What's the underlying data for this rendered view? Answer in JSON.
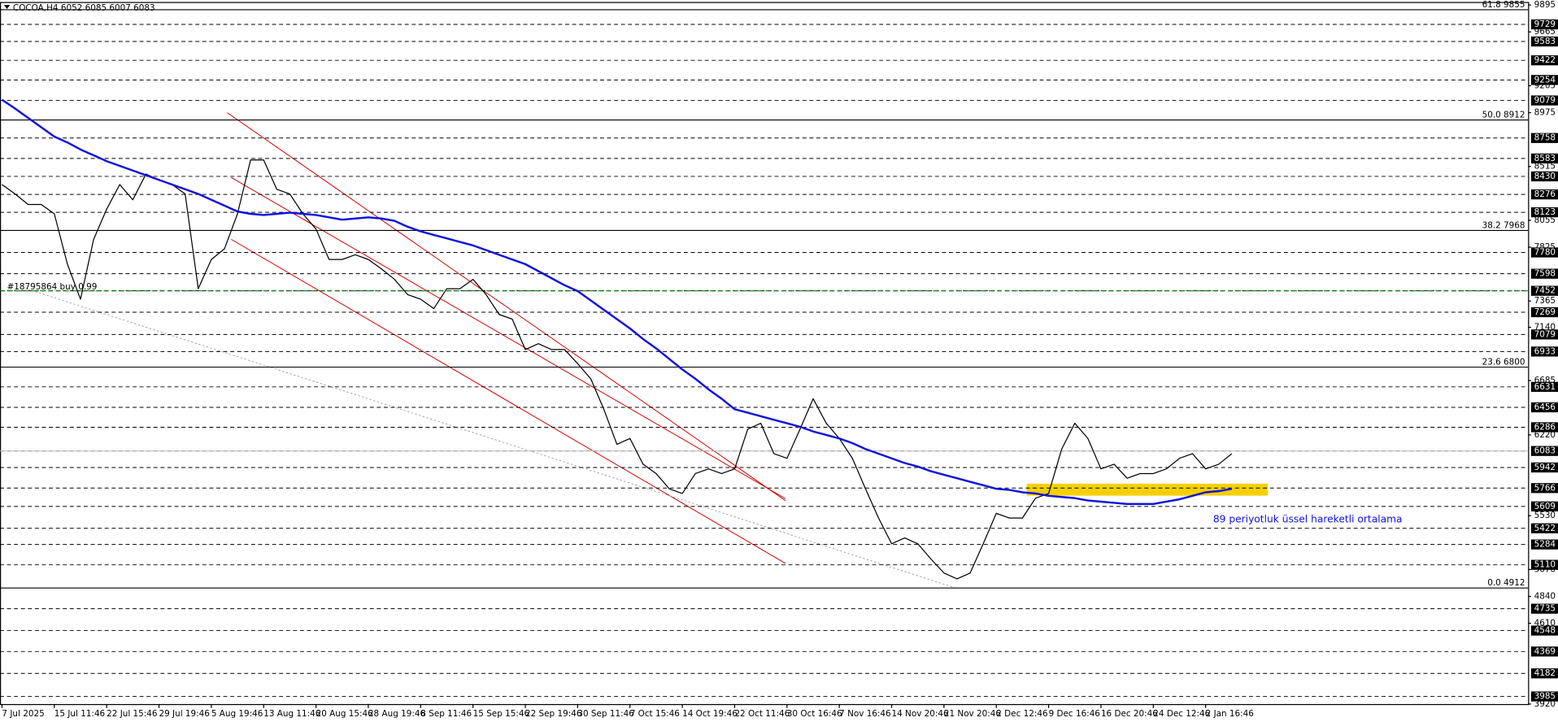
{
  "chart_data": {
    "type": "line",
    "title": "COCOA,H4  6052 6085 6007 6083",
    "categories": [
      "7 Jul 2025",
      null,
      null,
      null,
      "15 Jul 11:46",
      null,
      null,
      null,
      "22 Jul 15:46",
      null,
      null,
      null,
      "29 Jul 19:46",
      null,
      null,
      null,
      "5 Aug 19:46",
      null,
      null,
      null,
      "13 Aug 11:46",
      null,
      null,
      null,
      "20 Aug 15:46",
      null,
      null,
      null,
      "28 Aug 19:46",
      null,
      null,
      null,
      "8 Sep 11:46",
      null,
      null,
      null,
      "15 Sep 15:46",
      null,
      null,
      null,
      "22 Sep 19:46",
      null,
      null,
      null,
      "30 Sep 11:46",
      null,
      null,
      null,
      "7 Oct 15:46",
      null,
      null,
      null,
      "14 Oct 19:46",
      null,
      null,
      null,
      "22 Oct 11:46",
      null,
      null,
      null,
      "30 Oct 16:46",
      null,
      null,
      null,
      "7 Nov 16:46",
      null,
      null,
      null,
      "14 Nov 20:46",
      null,
      null,
      null,
      "21 Nov 20:46",
      null,
      null,
      null,
      "2 Dec 12:46",
      null,
      null,
      null,
      "9 Dec 16:46",
      null,
      null,
      null,
      "16 Dec 20:46",
      null,
      null,
      null,
      "24 Dec 12:46",
      null,
      null,
      null,
      "2 Jan 16:46",
      null,
      null
    ],
    "series": [
      {
        "color": "#000000",
        "values": [
          8360,
          8280,
          8190,
          8190,
          8110,
          7680,
          7380,
          7890,
          8150,
          8360,
          8230,
          8450,
          8400,
          8360,
          8280,
          7470,
          7720,
          7810,
          8110,
          8570,
          8570,
          8320,
          8280,
          8110,
          7980,
          7720,
          7720,
          7760,
          7720,
          7640,
          7550,
          7420,
          7380,
          7300,
          7470,
          7470,
          7550,
          7420,
          7250,
          7210,
          6950,
          7000,
          6950,
          6950,
          6830,
          6700,
          6440,
          6140,
          6190,
          5970,
          5890,
          5760,
          5720,
          5890,
          5930,
          5890,
          5930,
          6270,
          6320,
          6060,
          6020,
          6270,
          6530,
          6320,
          6190,
          6020,
          5760,
          5510,
          5290,
          5340,
          5290,
          5160,
          5040,
          4990,
          5040,
          5290,
          5550,
          5510,
          5510,
          5680,
          5720,
          6100,
          6320,
          6190,
          5930,
          5970,
          5850,
          5890,
          5890,
          5930,
          6020,
          6060,
          5930,
          5970,
          6060
        ]
      },
      {
        "name": "89 periyotluk üssel hareketli ortalama",
        "color": "#1010e0",
        "values": [
          9085,
          9010,
          8930,
          8850,
          8770,
          8720,
          8660,
          8610,
          8560,
          8520,
          8480,
          8440,
          8400,
          8360,
          8320,
          8280,
          8230,
          8180,
          8130,
          8110,
          8100,
          8110,
          8120,
          8110,
          8100,
          8080,
          8060,
          8070,
          8080,
          8070,
          8050,
          8000,
          7960,
          7930,
          7900,
          7870,
          7840,
          7800,
          7760,
          7720,
          7680,
          7620,
          7560,
          7500,
          7450,
          7370,
          7290,
          7210,
          7130,
          7040,
          6960,
          6870,
          6780,
          6700,
          6610,
          6530,
          6440,
          6410,
          6380,
          6350,
          6320,
          6290,
          6250,
          6220,
          6190,
          6150,
          6100,
          6060,
          6020,
          5980,
          5950,
          5910,
          5880,
          5850,
          5820,
          5790,
          5760,
          5750,
          5730,
          5720,
          5700,
          5690,
          5680,
          5660,
          5650,
          5640,
          5630,
          5630,
          5630,
          5650,
          5670,
          5700,
          5730,
          5740,
          5760
        ]
      }
    ],
    "ylim": [
      3920,
      9895
    ],
    "yticks": [
      9895,
      9665,
      9205,
      8975,
      8515,
      8055,
      7825,
      7365,
      7140,
      6685,
      6220,
      5530,
      5070,
      4840,
      4610,
      3920
    ],
    "levels": [
      9729,
      9583,
      9422,
      9254,
      9079,
      8758,
      8583,
      8430,
      8276,
      8123,
      7780,
      7598,
      7452,
      7269,
      7079,
      6933,
      6631,
      6456,
      6286,
      6083,
      5942,
      5766,
      5609,
      5422,
      5284,
      5110,
      4735,
      4548,
      4369,
      4182,
      3985
    ],
    "fib_levels": [
      {
        "value": 9855,
        "label": "61.8 9855"
      },
      {
        "value": 8912,
        "label": "50.0 8912"
      },
      {
        "value": 7968,
        "label": "38.2 7968"
      },
      {
        "value": 6800,
        "label": "23.6 6800"
      },
      {
        "value": 4912,
        "label": "0.0 4912"
      }
    ],
    "trade": {
      "value": 7452,
      "label": "#18795864 buy 0.99"
    },
    "current_price": 6083
  }
}
